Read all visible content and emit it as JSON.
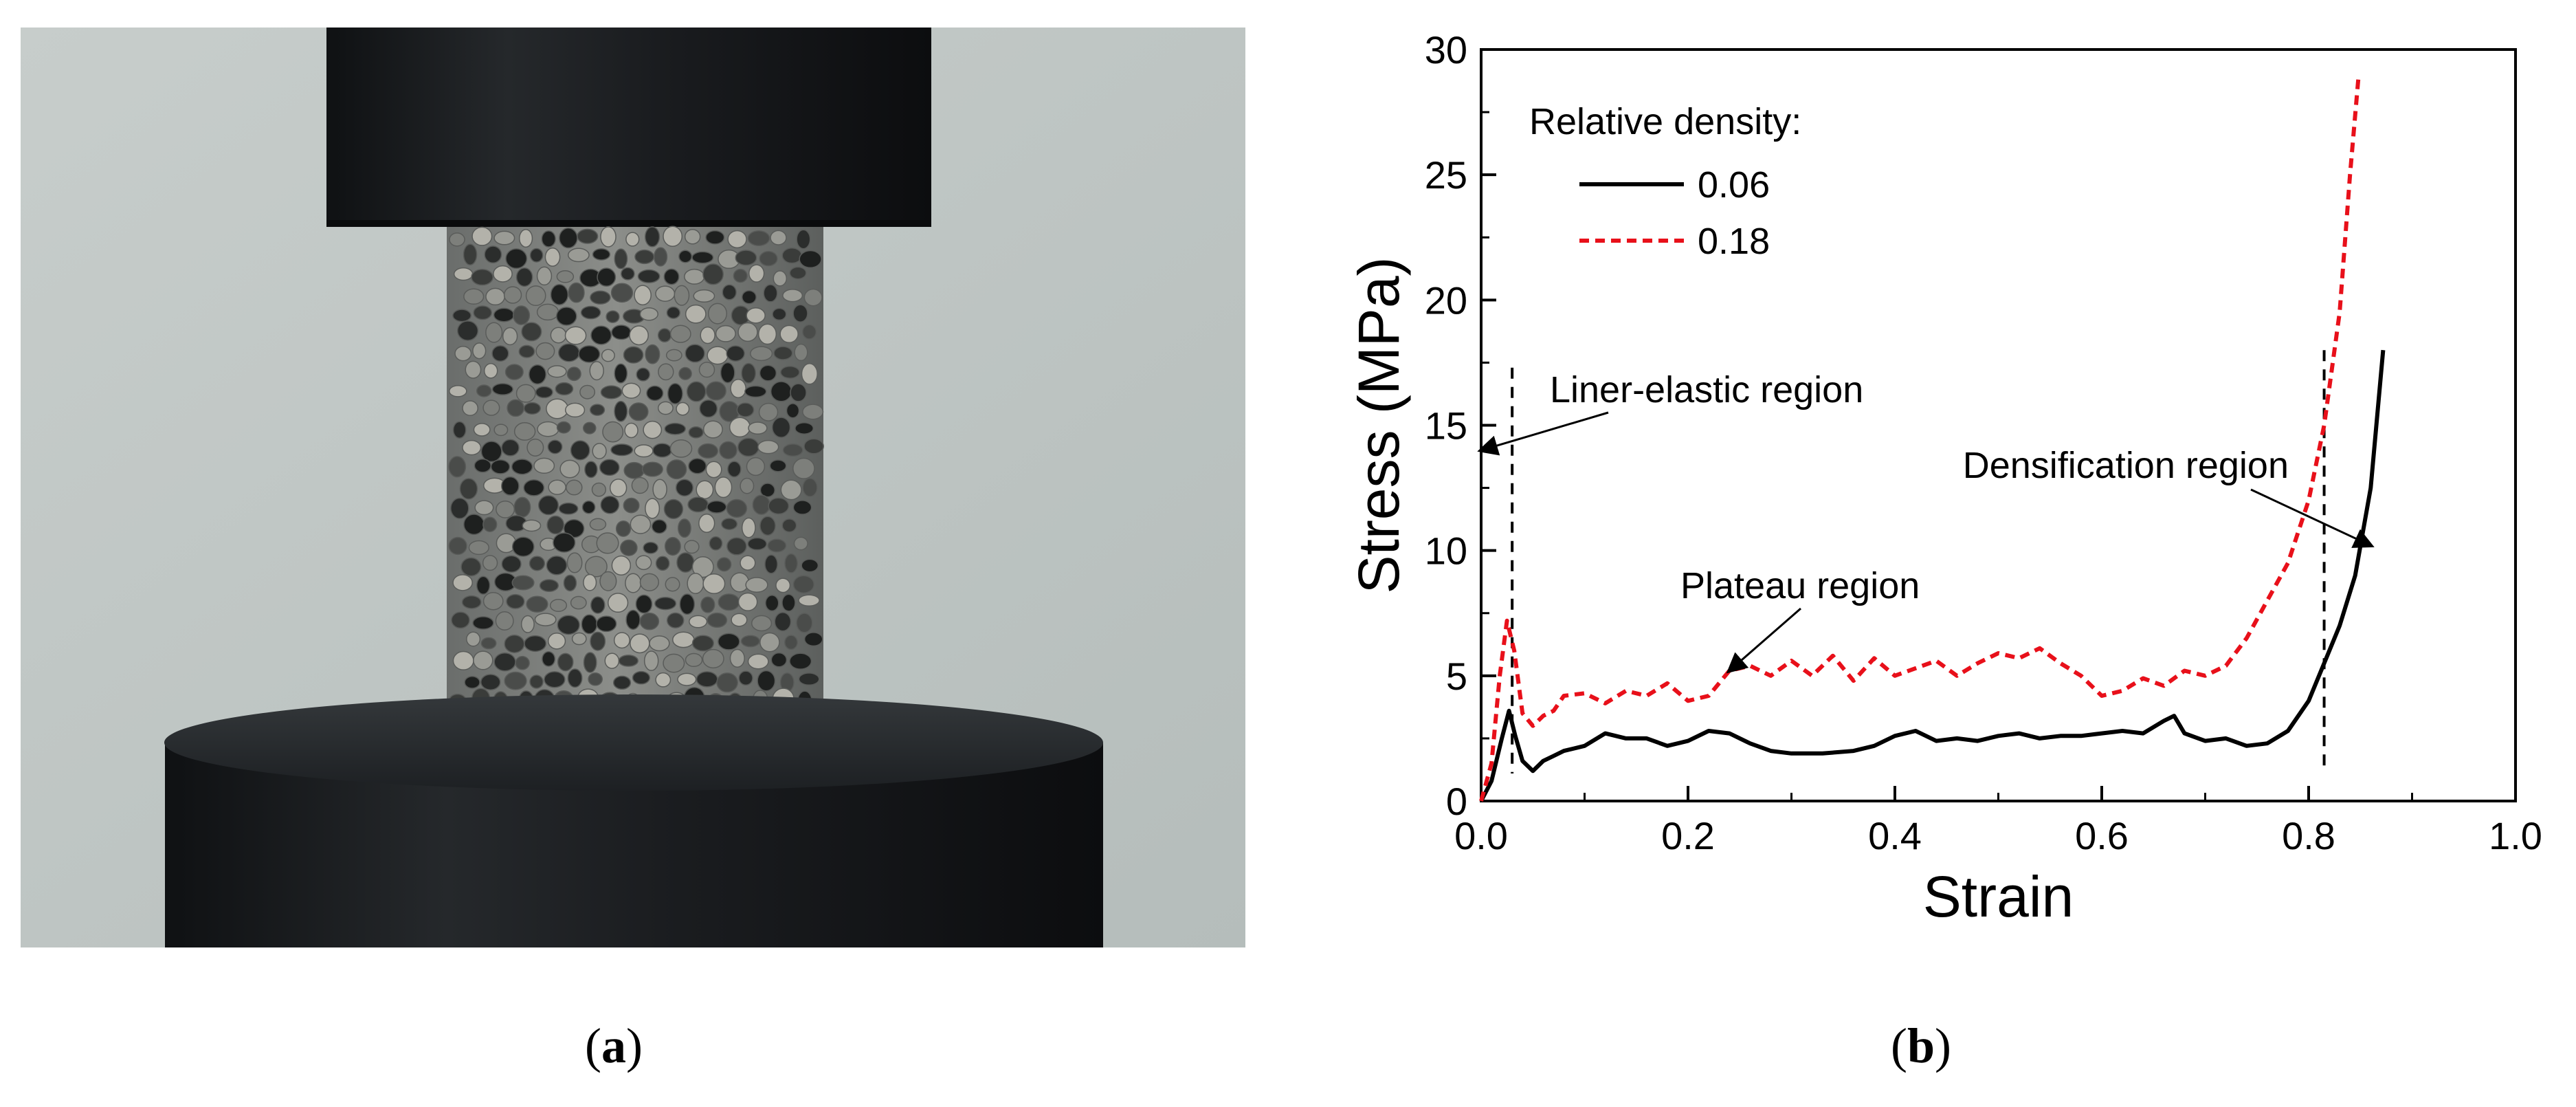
{
  "panels": {
    "a": {
      "label": "a"
    },
    "b": {
      "label": "b"
    }
  },
  "colors": {
    "series_006": "#000000",
    "series_018": "#e8101a",
    "background_wall": "#c2c9c7",
    "press_steel": "#17191b"
  },
  "chart_data": {
    "type": "line",
    "xlabel": "Strain",
    "ylabel": "Stress (MPa)",
    "xlim": [
      0.0,
      1.0
    ],
    "ylim": [
      0,
      30
    ],
    "x_ticks": [
      "0.0",
      "0.2",
      "0.4",
      "0.6",
      "0.8",
      "1.0"
    ],
    "y_ticks": [
      "0",
      "5",
      "10",
      "15",
      "20",
      "25",
      "30"
    ],
    "grid": false,
    "legend": {
      "title": "Relative density:",
      "position": "top-left"
    },
    "series": [
      {
        "name": "0.06",
        "style": "solid",
        "color": "#000000",
        "points": [
          [
            0.0,
            0
          ],
          [
            0.01,
            0.8
          ],
          [
            0.02,
            2.5
          ],
          [
            0.027,
            3.6
          ],
          [
            0.033,
            2.6
          ],
          [
            0.04,
            1.6
          ],
          [
            0.05,
            1.2
          ],
          [
            0.06,
            1.6
          ],
          [
            0.07,
            1.8
          ],
          [
            0.08,
            2.0
          ],
          [
            0.1,
            2.2
          ],
          [
            0.12,
            2.7
          ],
          [
            0.14,
            2.5
          ],
          [
            0.16,
            2.5
          ],
          [
            0.18,
            2.2
          ],
          [
            0.2,
            2.4
          ],
          [
            0.22,
            2.8
          ],
          [
            0.24,
            2.7
          ],
          [
            0.26,
            2.3
          ],
          [
            0.28,
            2.0
          ],
          [
            0.3,
            1.9
          ],
          [
            0.33,
            1.9
          ],
          [
            0.36,
            2.0
          ],
          [
            0.38,
            2.2
          ],
          [
            0.4,
            2.6
          ],
          [
            0.42,
            2.8
          ],
          [
            0.44,
            2.4
          ],
          [
            0.46,
            2.5
          ],
          [
            0.48,
            2.4
          ],
          [
            0.5,
            2.6
          ],
          [
            0.52,
            2.7
          ],
          [
            0.54,
            2.5
          ],
          [
            0.56,
            2.6
          ],
          [
            0.58,
            2.6
          ],
          [
            0.6,
            2.7
          ],
          [
            0.62,
            2.8
          ],
          [
            0.64,
            2.7
          ],
          [
            0.66,
            3.2
          ],
          [
            0.67,
            3.4
          ],
          [
            0.68,
            2.7
          ],
          [
            0.7,
            2.4
          ],
          [
            0.72,
            2.5
          ],
          [
            0.74,
            2.2
          ],
          [
            0.76,
            2.3
          ],
          [
            0.78,
            2.8
          ],
          [
            0.8,
            4.0
          ],
          [
            0.815,
            5.5
          ],
          [
            0.83,
            7.0
          ],
          [
            0.845,
            9.0
          ],
          [
            0.86,
            12.5
          ],
          [
            0.872,
            18.0
          ]
        ]
      },
      {
        "name": "0.18",
        "style": "dashed",
        "color": "#e8101a",
        "points": [
          [
            0.0,
            0
          ],
          [
            0.01,
            1.5
          ],
          [
            0.018,
            5.0
          ],
          [
            0.025,
            7.2
          ],
          [
            0.032,
            6.0
          ],
          [
            0.04,
            3.5
          ],
          [
            0.05,
            3.0
          ],
          [
            0.06,
            3.4
          ],
          [
            0.07,
            3.6
          ],
          [
            0.08,
            4.2
          ],
          [
            0.1,
            4.3
          ],
          [
            0.12,
            3.9
          ],
          [
            0.14,
            4.4
          ],
          [
            0.16,
            4.2
          ],
          [
            0.18,
            4.7
          ],
          [
            0.2,
            4.0
          ],
          [
            0.22,
            4.2
          ],
          [
            0.24,
            5.2
          ],
          [
            0.26,
            5.4
          ],
          [
            0.28,
            5.0
          ],
          [
            0.3,
            5.6
          ],
          [
            0.32,
            5.0
          ],
          [
            0.34,
            5.8
          ],
          [
            0.36,
            4.8
          ],
          [
            0.38,
            5.7
          ],
          [
            0.4,
            5.0
          ],
          [
            0.42,
            5.3
          ],
          [
            0.44,
            5.6
          ],
          [
            0.46,
            5.0
          ],
          [
            0.48,
            5.5
          ],
          [
            0.5,
            5.9
          ],
          [
            0.52,
            5.7
          ],
          [
            0.54,
            6.1
          ],
          [
            0.56,
            5.5
          ],
          [
            0.58,
            5.0
          ],
          [
            0.6,
            4.2
          ],
          [
            0.62,
            4.4
          ],
          [
            0.64,
            4.9
          ],
          [
            0.66,
            4.6
          ],
          [
            0.68,
            5.2
          ],
          [
            0.7,
            5.0
          ],
          [
            0.72,
            5.4
          ],
          [
            0.74,
            6.5
          ],
          [
            0.76,
            8.0
          ],
          [
            0.78,
            9.5
          ],
          [
            0.8,
            12.0
          ],
          [
            0.815,
            15.0
          ],
          [
            0.83,
            19.5
          ],
          [
            0.84,
            25.0
          ],
          [
            0.848,
            28.8
          ]
        ]
      }
    ],
    "boundaries": [
      {
        "x": 0.03,
        "y_top": 17.3
      },
      {
        "x": 0.815,
        "y_top": 18.0
      }
    ],
    "annotations": [
      {
        "text": "Liner-elastic region",
        "anchor_x": 0.0,
        "anchor_y": 14.0
      },
      {
        "text": "Plateau region",
        "anchor_x": 0.24,
        "anchor_y": 5.2
      },
      {
        "text": "Densification region",
        "anchor_x": 0.86,
        "anchor_y": 10.2
      }
    ]
  }
}
